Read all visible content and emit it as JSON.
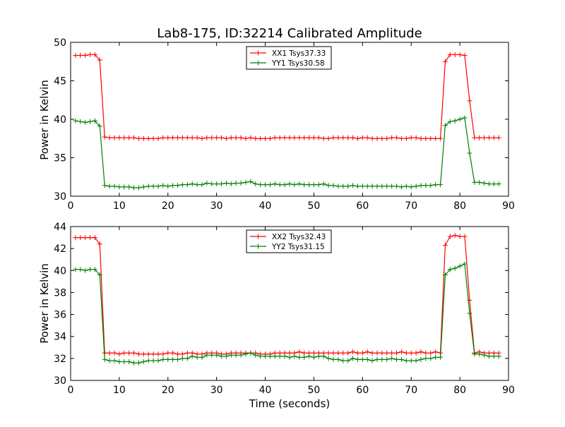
{
  "chart_data": [
    {
      "type": "line",
      "title": "Lab8-175, ID:32214 Calibrated Amplitude",
      "xlabel": "",
      "ylabel": "Power in Kelvin",
      "xlim": [
        0,
        90
      ],
      "ylim": [
        30,
        50
      ],
      "xticks": [
        "0",
        "10",
        "20",
        "30",
        "40",
        "50",
        "60",
        "70",
        "80",
        "90"
      ],
      "yticks": [
        "30",
        "35",
        "40",
        "45",
        "50"
      ],
      "legend_position": "top-center",
      "x": [
        1,
        2,
        3,
        4,
        5,
        6,
        7,
        8,
        9,
        10,
        11,
        12,
        13,
        14,
        15,
        16,
        17,
        18,
        19,
        20,
        21,
        22,
        23,
        24,
        25,
        26,
        27,
        28,
        29,
        30,
        31,
        32,
        33,
        34,
        35,
        36,
        37,
        38,
        39,
        40,
        41,
        42,
        43,
        44,
        45,
        46,
        47,
        48,
        49,
        50,
        51,
        52,
        53,
        54,
        55,
        56,
        57,
        58,
        59,
        60,
        61,
        62,
        63,
        64,
        65,
        66,
        67,
        68,
        69,
        70,
        71,
        72,
        73,
        74,
        75,
        76,
        77,
        78,
        79,
        80,
        81,
        82,
        83,
        84,
        85,
        86,
        87,
        88
      ],
      "series": [
        {
          "name": "XX1 Tsys37.33",
          "color": "#ff0000",
          "values": [
            48.3,
            48.3,
            48.3,
            48.4,
            48.4,
            47.7,
            37.7,
            37.6,
            37.6,
            37.6,
            37.6,
            37.6,
            37.6,
            37.5,
            37.5,
            37.5,
            37.5,
            37.5,
            37.6,
            37.6,
            37.6,
            37.6,
            37.6,
            37.6,
            37.6,
            37.6,
            37.5,
            37.6,
            37.6,
            37.6,
            37.6,
            37.5,
            37.6,
            37.6,
            37.6,
            37.5,
            37.6,
            37.5,
            37.5,
            37.5,
            37.5,
            37.6,
            37.6,
            37.6,
            37.6,
            37.6,
            37.6,
            37.6,
            37.6,
            37.6,
            37.6,
            37.5,
            37.5,
            37.6,
            37.6,
            37.6,
            37.6,
            37.6,
            37.5,
            37.6,
            37.6,
            37.5,
            37.5,
            37.5,
            37.5,
            37.6,
            37.6,
            37.5,
            37.5,
            37.6,
            37.6,
            37.5,
            37.5,
            37.5,
            37.5,
            37.5,
            47.5,
            48.4,
            48.4,
            48.4,
            48.3,
            42.4,
            37.6,
            37.6,
            37.6,
            37.6,
            37.6,
            37.6
          ]
        },
        {
          "name": "YY1 Tsys30.58",
          "color": "#008000",
          "values": [
            39.8,
            39.7,
            39.6,
            39.7,
            39.8,
            39.1,
            31.4,
            31.3,
            31.3,
            31.2,
            31.2,
            31.2,
            31.1,
            31.1,
            31.2,
            31.3,
            31.3,
            31.3,
            31.4,
            31.3,
            31.4,
            31.4,
            31.5,
            31.5,
            31.6,
            31.5,
            31.5,
            31.7,
            31.6,
            31.6,
            31.6,
            31.7,
            31.6,
            31.7,
            31.7,
            31.8,
            31.9,
            31.6,
            31.5,
            31.5,
            31.5,
            31.6,
            31.5,
            31.5,
            31.6,
            31.5,
            31.6,
            31.5,
            31.5,
            31.5,
            31.5,
            31.6,
            31.4,
            31.4,
            31.3,
            31.3,
            31.3,
            31.4,
            31.3,
            31.3,
            31.3,
            31.3,
            31.3,
            31.3,
            31.3,
            31.3,
            31.3,
            31.2,
            31.3,
            31.2,
            31.3,
            31.4,
            31.4,
            31.4,
            31.5,
            31.5,
            39.2,
            39.7,
            39.8,
            40.0,
            40.2,
            35.6,
            31.8,
            31.8,
            31.7,
            31.6,
            31.6,
            31.6
          ]
        }
      ]
    },
    {
      "type": "line",
      "title": "",
      "xlabel": "Time (seconds)",
      "ylabel": "Power in Kelvin",
      "xlim": [
        0,
        90
      ],
      "ylim": [
        30,
        44
      ],
      "xticks": [
        "0",
        "10",
        "20",
        "30",
        "40",
        "50",
        "60",
        "70",
        "80",
        "90"
      ],
      "yticks": [
        "30",
        "32",
        "34",
        "36",
        "38",
        "40",
        "42",
        "44"
      ],
      "legend_position": "top-center",
      "x": [
        1,
        2,
        3,
        4,
        5,
        6,
        7,
        8,
        9,
        10,
        11,
        12,
        13,
        14,
        15,
        16,
        17,
        18,
        19,
        20,
        21,
        22,
        23,
        24,
        25,
        26,
        27,
        28,
        29,
        30,
        31,
        32,
        33,
        34,
        35,
        36,
        37,
        38,
        39,
        40,
        41,
        42,
        43,
        44,
        45,
        46,
        47,
        48,
        49,
        50,
        51,
        52,
        53,
        54,
        55,
        56,
        57,
        58,
        59,
        60,
        61,
        62,
        63,
        64,
        65,
        66,
        67,
        68,
        69,
        70,
        71,
        72,
        73,
        74,
        75,
        76,
        77,
        78,
        79,
        80,
        81,
        82,
        83,
        84,
        85,
        86,
        87,
        88
      ],
      "series": [
        {
          "name": "XX2 Tsys32.43",
          "color": "#ff0000",
          "values": [
            43.0,
            43.0,
            43.0,
            43.0,
            43.0,
            42.4,
            32.5,
            32.5,
            32.5,
            32.4,
            32.5,
            32.5,
            32.5,
            32.4,
            32.4,
            32.4,
            32.4,
            32.4,
            32.4,
            32.5,
            32.5,
            32.4,
            32.4,
            32.5,
            32.5,
            32.4,
            32.4,
            32.5,
            32.5,
            32.5,
            32.4,
            32.4,
            32.5,
            32.5,
            32.5,
            32.5,
            32.5,
            32.5,
            32.4,
            32.4,
            32.4,
            32.5,
            32.5,
            32.5,
            32.5,
            32.5,
            32.6,
            32.5,
            32.5,
            32.5,
            32.5,
            32.5,
            32.5,
            32.5,
            32.5,
            32.5,
            32.5,
            32.6,
            32.5,
            32.5,
            32.6,
            32.5,
            32.5,
            32.5,
            32.5,
            32.5,
            32.5,
            32.6,
            32.5,
            32.5,
            32.5,
            32.6,
            32.5,
            32.5,
            32.6,
            32.5,
            42.3,
            43.1,
            43.2,
            43.1,
            43.1,
            37.3,
            32.5,
            32.6,
            32.5,
            32.5,
            32.5,
            32.5
          ]
        },
        {
          "name": "YY2 Tsys31.15",
          "color": "#008000",
          "values": [
            40.1,
            40.1,
            40.0,
            40.1,
            40.1,
            39.6,
            31.9,
            31.8,
            31.8,
            31.7,
            31.7,
            31.7,
            31.6,
            31.6,
            31.7,
            31.8,
            31.8,
            31.8,
            31.9,
            31.9,
            31.9,
            31.9,
            32.0,
            32.0,
            32.2,
            32.1,
            32.1,
            32.3,
            32.3,
            32.3,
            32.2,
            32.2,
            32.3,
            32.3,
            32.3,
            32.4,
            32.5,
            32.3,
            32.2,
            32.2,
            32.2,
            32.2,
            32.2,
            32.2,
            32.1,
            32.2,
            32.1,
            32.1,
            32.2,
            32.1,
            32.2,
            32.2,
            32.0,
            31.9,
            31.9,
            31.8,
            31.8,
            32.0,
            31.9,
            31.9,
            31.9,
            31.8,
            31.9,
            31.9,
            31.9,
            32.0,
            31.9,
            31.9,
            31.8,
            31.8,
            31.8,
            31.9,
            32.0,
            32.0,
            32.1,
            32.1,
            39.6,
            40.1,
            40.2,
            40.4,
            40.6,
            36.1,
            32.4,
            32.4,
            32.3,
            32.2,
            32.2,
            32.2
          ]
        }
      ]
    }
  ]
}
